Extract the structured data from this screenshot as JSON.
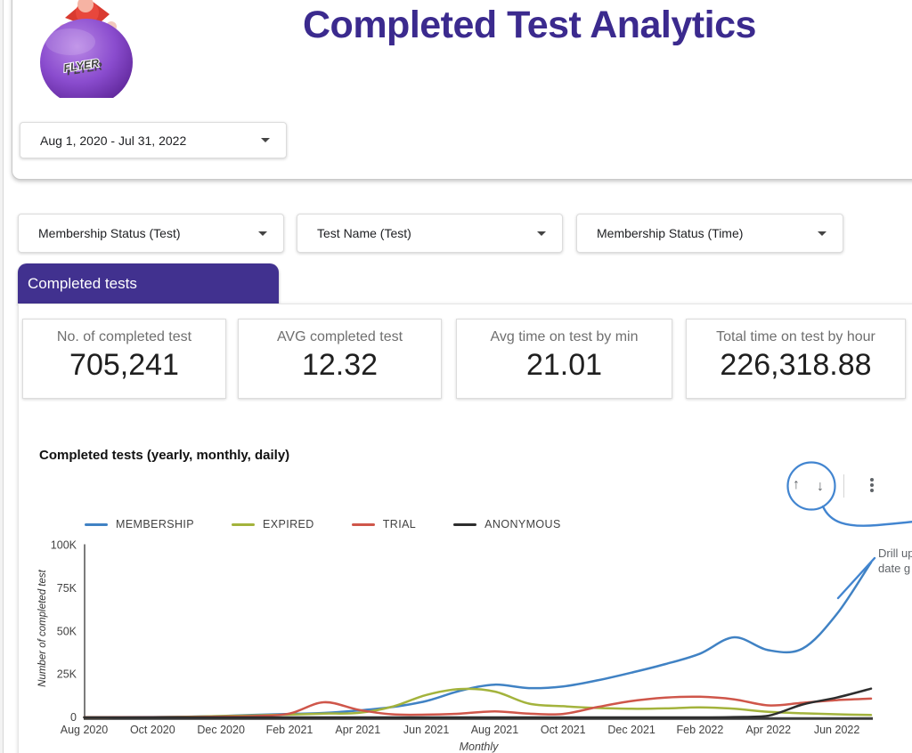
{
  "page": {
    "title": "Completed Test Analytics"
  },
  "logo": {
    "text": "FLYER"
  },
  "header": {
    "date_range": {
      "value": "Aug 1, 2020 - Jul 31, 2022"
    }
  },
  "filters": [
    {
      "label": "Membership Status (Test)"
    },
    {
      "label": "Test Name (Test)"
    },
    {
      "label": "Membership Status (Time)"
    }
  ],
  "tab": {
    "label": "Completed tests"
  },
  "scorecards": [
    {
      "label": "No. of completed test",
      "value": "705,241"
    },
    {
      "label": "AVG completed test",
      "value": "12.32"
    },
    {
      "label": "Avg time on test by min",
      "value": "21.01"
    },
    {
      "label": "Total time on test by hour",
      "value": "226,318.88"
    }
  ],
  "chart": {
    "title": "Completed tests (yearly, monthly, daily)",
    "drill_note_line1": "Drill up",
    "drill_note_line2": "date g",
    "annotation_color": "#4285d0",
    "icons": {
      "drill_up": "↑",
      "drill_down": "↓"
    }
  },
  "chart_data": {
    "type": "line",
    "title": "Completed tests (yearly, monthly, daily)",
    "xlabel": "Monthly",
    "ylabel": "Number of completed test",
    "ylim": [
      0,
      100000
    ],
    "grid": false,
    "legend_position": "top",
    "yticks": [
      {
        "label": "0",
        "value": 0
      },
      {
        "label": "25K",
        "value": 25000
      },
      {
        "label": "50K",
        "value": 50000
      },
      {
        "label": "75K",
        "value": 75000
      },
      {
        "label": "100K",
        "value": 100000
      }
    ],
    "x": [
      "Aug 2020",
      "Sep 2020",
      "Oct 2020",
      "Nov 2020",
      "Dec 2020",
      "Jan 2021",
      "Feb 2021",
      "Mar 2021",
      "Apr 2021",
      "May 2021",
      "Jun 2021",
      "Jul 2021",
      "Aug 2021",
      "Sep 2021",
      "Oct 2021",
      "Nov 2021",
      "Dec 2021",
      "Jan 2022",
      "Feb 2022",
      "Mar 2022",
      "Apr 2022",
      "May 2022",
      "Jun 2022",
      "Jul 2022"
    ],
    "x_tick_every": 2,
    "series": [
      {
        "name": "MEMBERSHIP",
        "color": "#4082c4",
        "values": [
          100,
          150,
          200,
          400,
          800,
          1500,
          2000,
          2600,
          4000,
          6000,
          9500,
          15500,
          19000,
          17000,
          18000,
          21500,
          26000,
          31000,
          37000,
          46500,
          39000,
          40000,
          60000,
          90000
        ]
      },
      {
        "name": "EXPIRED",
        "color": "#a3b33c",
        "values": [
          50,
          100,
          150,
          300,
          800,
          1200,
          1600,
          2200,
          2600,
          6200,
          13000,
          16500,
          15000,
          8000,
          6500,
          5500,
          5000,
          5200,
          5800,
          5000,
          3200,
          2400,
          1800,
          1400
        ]
      },
      {
        "name": "TRIAL",
        "color": "#cf564a",
        "values": [
          50,
          100,
          100,
          200,
          400,
          800,
          2200,
          8800,
          4500,
          1800,
          1600,
          2200,
          3500,
          2200,
          2000,
          6000,
          9500,
          11500,
          12000,
          10500,
          7000,
          8500,
          10000,
          10900
        ]
      },
      {
        "name": "ANONYMOUS",
        "color": "#2d2d2d",
        "values": [
          0,
          0,
          0,
          0,
          0,
          0,
          0,
          0,
          0,
          0,
          0,
          0,
          0,
          0,
          0,
          0,
          0,
          0,
          0,
          200,
          1000,
          7500,
          11500,
          16700
        ]
      }
    ]
  }
}
